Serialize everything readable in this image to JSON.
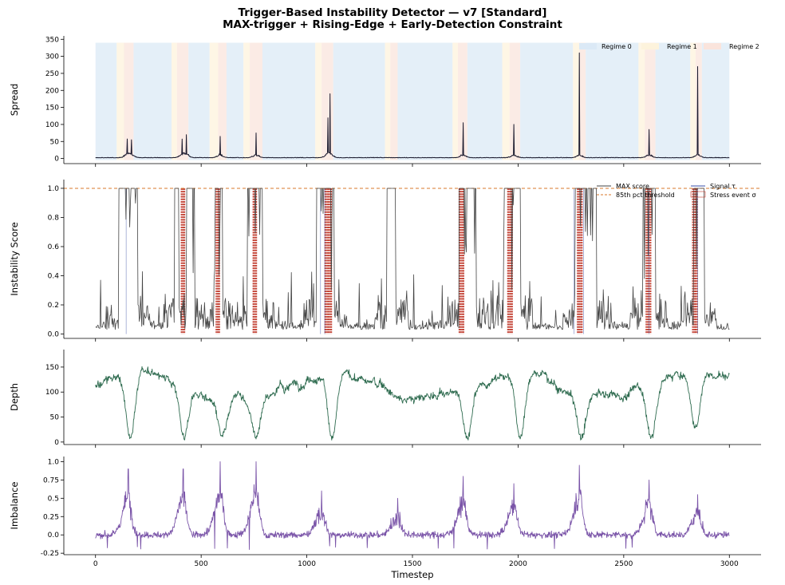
{
  "figure": {
    "title_line1": "Trigger-Based Instability Detector — v7  [Standard]",
    "title_line2": "MAX-trigger + Rising-Edge + Early-Detection Constraint"
  },
  "chart_data": [
    {
      "type": "line",
      "ylabel": "Spread",
      "xlim": [
        -150,
        3150
      ],
      "ylim": [
        -15,
        360
      ],
      "yticks": [
        0,
        50,
        100,
        150,
        200,
        250,
        300,
        350
      ],
      "series": [
        {
          "color": "#1a1a2e",
          "description_spikes": [
            [
              150,
              55
            ],
            [
              170,
              55
            ],
            [
              410,
              55
            ],
            [
              430,
              70
            ],
            [
              590,
              65
            ],
            [
              760,
              75
            ],
            [
              1100,
              115
            ],
            [
              1110,
              190
            ],
            [
              1740,
              105
            ],
            [
              1980,
              100
            ],
            [
              2290,
              310
            ],
            [
              2620,
              85
            ],
            [
              2850,
              270
            ]
          ]
        }
      ],
      "regime_bands": {
        "legend": [
          {
            "name": "Regime 0",
            "color": "#dbe9f6"
          },
          {
            "name": "Regime 1",
            "color": "#fdf3dc"
          },
          {
            "name": "Regime 2",
            "color": "#fae4dc"
          }
        ],
        "spans": [
          [
            0,
            100,
            0
          ],
          [
            100,
            135,
            1
          ],
          [
            135,
            180,
            2
          ],
          [
            180,
            360,
            0
          ],
          [
            360,
            385,
            1
          ],
          [
            385,
            440,
            2
          ],
          [
            440,
            540,
            0
          ],
          [
            540,
            580,
            1
          ],
          [
            580,
            620,
            2
          ],
          [
            620,
            700,
            0
          ],
          [
            700,
            730,
            1
          ],
          [
            730,
            790,
            2
          ],
          [
            790,
            1040,
            0
          ],
          [
            1040,
            1070,
            1
          ],
          [
            1070,
            1125,
            2
          ],
          [
            1125,
            1370,
            0
          ],
          [
            1370,
            1395,
            1
          ],
          [
            1395,
            1430,
            2
          ],
          [
            1430,
            1690,
            0
          ],
          [
            1690,
            1715,
            1
          ],
          [
            1715,
            1760,
            2
          ],
          [
            1760,
            1925,
            0
          ],
          [
            1925,
            1960,
            1
          ],
          [
            1960,
            2010,
            2
          ],
          [
            2010,
            2260,
            0
          ],
          [
            2260,
            2290,
            1
          ],
          [
            2290,
            2320,
            2
          ],
          [
            2320,
            2570,
            0
          ],
          [
            2570,
            2600,
            1
          ],
          [
            2600,
            2650,
            2
          ],
          [
            2650,
            2815,
            0
          ],
          [
            2815,
            2840,
            1
          ],
          [
            2840,
            2870,
            2
          ],
          [
            2870,
            3000,
            0
          ]
        ]
      }
    },
    {
      "type": "line",
      "ylabel": "Instability Score",
      "xlim": [
        -150,
        3150
      ],
      "ylim": [
        -0.03,
        1.06
      ],
      "yticks": [
        0.0,
        0.2,
        0.4,
        0.6,
        0.8,
        1.0
      ],
      "threshold": 1.0,
      "legend": [
        {
          "name": "MAX score",
          "color": "#444444",
          "style": "solid"
        },
        {
          "name": "85th pct threshold",
          "color": "#d97a2b",
          "style": "dashed"
        },
        {
          "name": "Signal τ",
          "color": "#3a4fa8",
          "style": "solid"
        },
        {
          "name": "Stress event σ",
          "color": "#c0392b",
          "style": "hatch"
        }
      ],
      "high_segments": [
        [
          110,
          145
        ],
        [
          145,
          200
        ],
        [
          375,
          395
        ],
        [
          430,
          470
        ],
        [
          560,
          600
        ],
        [
          720,
          790
        ],
        [
          1045,
          1130
        ],
        [
          1380,
          1420
        ],
        [
          1720,
          1800
        ],
        [
          1930,
          2010
        ],
        [
          2270,
          2370
        ],
        [
          2590,
          2650
        ],
        [
          2830,
          2880
        ]
      ],
      "signal_lines": [
        145,
        1065,
        1085,
        2265,
        2310,
        2620,
        2850
      ],
      "stress_events": [
        [
          405,
          425
        ],
        [
          570,
          590
        ],
        [
          745,
          765
        ],
        [
          1085,
          1120
        ],
        [
          1720,
          1745
        ],
        [
          1950,
          1975
        ],
        [
          2280,
          2305
        ],
        [
          2605,
          2630
        ],
        [
          2825,
          2850
        ]
      ]
    },
    {
      "type": "line",
      "ylabel": "Depth",
      "xlim": [
        -150,
        3150
      ],
      "ylim": [
        -5,
        185
      ],
      "yticks": [
        0,
        50,
        100,
        150
      ],
      "series": [
        {
          "color": "#2e6b4f",
          "dips": [
            [
              165,
              5
            ],
            [
              420,
              5
            ],
            [
              600,
              10
            ],
            [
              760,
              10
            ],
            [
              1120,
              5
            ],
            [
              1760,
              5
            ],
            [
              2010,
              5
            ],
            [
              2300,
              5
            ],
            [
              2630,
              5
            ],
            [
              2840,
              25
            ]
          ]
        }
      ]
    },
    {
      "type": "line",
      "ylabel": "Imbalance",
      "xlabel": "Timestep",
      "xlim": [
        -150,
        3150
      ],
      "ylim": [
        -0.27,
        1.07
      ],
      "yticks": [
        -0.25,
        0.0,
        0.25,
        0.5,
        0.75,
        1.0
      ],
      "xticks": [
        0,
        500,
        1000,
        1500,
        2000,
        2500,
        3000
      ],
      "series": [
        {
          "color": "#7a54a8",
          "peaks": [
            [
              155,
              0.9
            ],
            [
              415,
              0.9
            ],
            [
              590,
              1.0
            ],
            [
              760,
              1.0
            ],
            [
              1070,
              0.6
            ],
            [
              1430,
              0.5
            ],
            [
              1740,
              0.8
            ],
            [
              1980,
              0.7
            ],
            [
              2290,
              0.95
            ],
            [
              2620,
              0.75
            ],
            [
              2850,
              0.55
            ]
          ]
        }
      ]
    }
  ]
}
